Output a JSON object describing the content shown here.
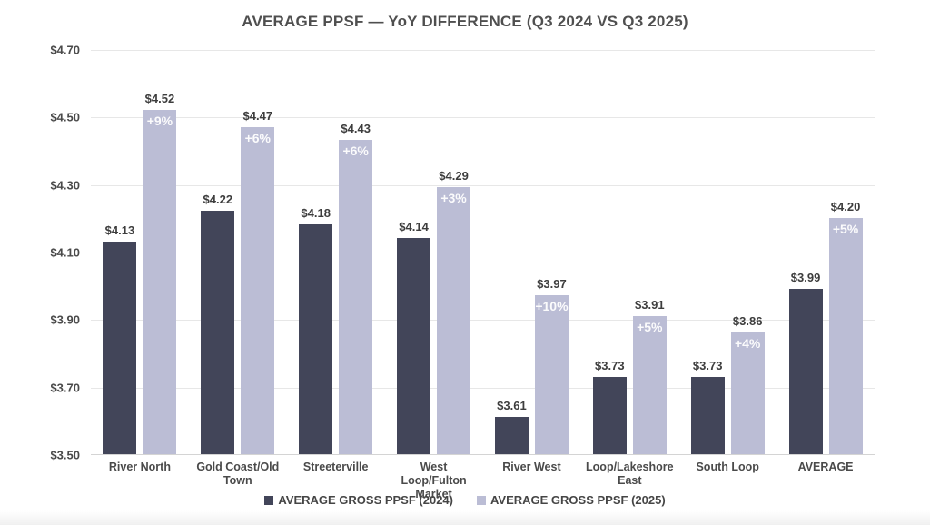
{
  "chart_data": {
    "type": "bar",
    "title": "AVERAGE PPSF — YoY DIFFERENCE (Q3 2024 VS Q3 2025)",
    "categories": [
      "River North",
      "Gold Coast/Old Town",
      "Streeterville",
      "West Loop/Fulton Market",
      "River West",
      "Loop/Lakeshore East",
      "South Loop",
      "AVERAGE"
    ],
    "category_display": [
      "River North",
      "Gold Coast/Old\nTown",
      "Streeterville",
      "West Loop/Fulton\nMarket",
      "River West",
      "Loop/Lakeshore\nEast",
      "South Loop",
      "AVERAGE"
    ],
    "series": [
      {
        "name": "AVERAGE GROSS PPSF (2024)",
        "color": "#424559",
        "values": [
          4.13,
          4.22,
          4.18,
          4.14,
          3.61,
          3.73,
          3.73,
          3.99
        ],
        "value_labels": [
          "$4.13",
          "$4.22",
          "$4.18",
          "$4.14",
          "$3.61",
          "$3.73",
          "$3.73",
          "$3.99"
        ]
      },
      {
        "name": "AVERAGE GROSS PPSF (2025)",
        "color": "#bbbdd5",
        "values": [
          4.52,
          4.47,
          4.43,
          4.29,
          3.97,
          3.91,
          3.86,
          4.2
        ],
        "value_labels": [
          "$4.52",
          "$4.47",
          "$4.43",
          "$4.29",
          "$3.97",
          "$3.91",
          "$3.86",
          "$4.20"
        ],
        "pct_labels": [
          "+9%",
          "+6%",
          "+6%",
          "+3%",
          "+10%",
          "+5%",
          "+4%",
          "+5%"
        ]
      }
    ],
    "ylim": [
      3.5,
      4.7
    ],
    "y_ticks": [
      4.7,
      4.5,
      4.3,
      4.1,
      3.9,
      3.7,
      3.5
    ],
    "y_tick_labels": [
      "$4.70",
      "$4.50",
      "$4.30",
      "$4.10",
      "$3.90",
      "$3.70",
      "$3.50"
    ],
    "grid": true,
    "legend_position": "bottom",
    "colors": {
      "value_label": "#3d3d3d",
      "pct_label": "#ffffff",
      "axis_label": "#4a4a4a",
      "title": "#4f4f4f",
      "gridline": "#e7e7e7",
      "baseline": "#d4d4d4"
    }
  }
}
